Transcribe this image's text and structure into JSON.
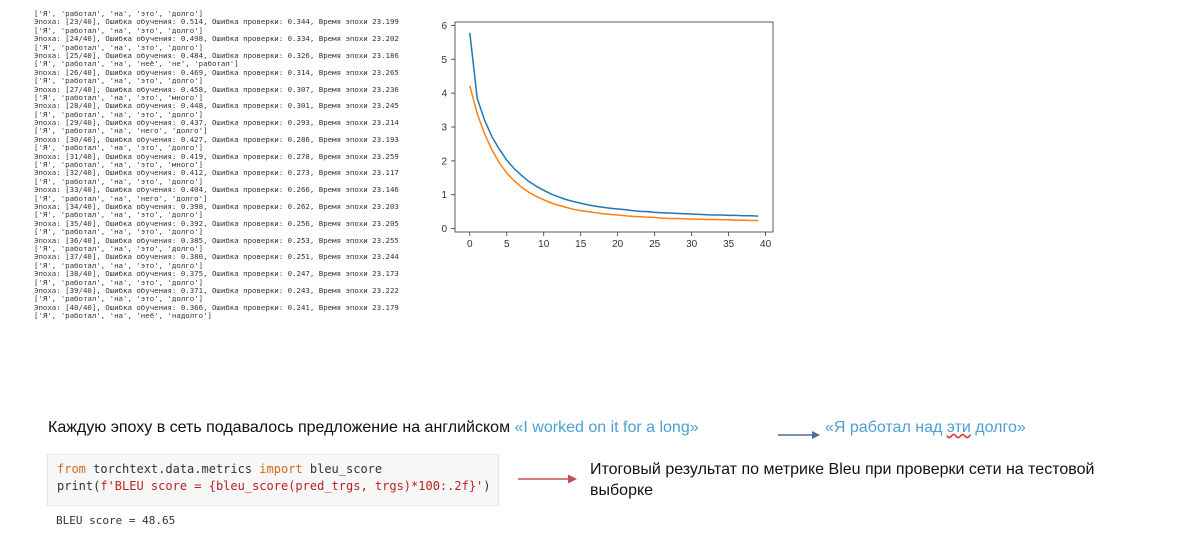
{
  "training_log": [
    "['Я', 'работал', 'на', 'это', 'долго']",
    "Эпоха: [23/40], Ошибка обучения: 0.514, Ошибка проверки: 0.344, Время эпохи 23.199",
    "['Я', 'работал', 'на', 'это', 'долго']",
    "Эпоха: [24/40], Ошибка обучения: 0.498, Ошибка проверки: 0.334, Время эпохи 23.202",
    "['Я', 'работал', 'на', 'это', 'долго']",
    "Эпоха: [25/40], Ошибка обучения: 0.484, Ошибка проверки: 0.326, Время эпохи 23.186",
    "['Я', 'работал', 'на', 'неё', 'не', 'работал']",
    "Эпоха: [26/40], Ошибка обучения: 0.469, Ошибка проверки: 0.314, Время эпохи 23.265",
    "['Я', 'работал', 'на', 'это', 'долго']",
    "Эпоха: [27/40], Ошибка обучения: 0.458, Ошибка проверки: 0.307, Время эпохи 23.236",
    "['Я', 'работал', 'на', 'это', 'много']",
    "Эпоха: [28/40], Ошибка обучения: 0.448, Ошибка проверки: 0.301, Время эпохи 23.245",
    "['Я', 'работал', 'на', 'это', 'долго']",
    "Эпоха: [29/40], Ошибка обучения: 0.437, Ошибка проверки: 0.293, Время эпохи 23.214",
    "['Я', 'работал', 'на', 'него', 'долго']",
    "Эпоха: [30/40], Ошибка обучения: 0.427, Ошибка проверки: 0.286, Время эпохи 23.193",
    "['Я', 'работал', 'на', 'это', 'долго']",
    "Эпоха: [31/40], Ошибка обучения: 0.419, Ошибка проверки: 0.278, Время эпохи 23.259",
    "['Я', 'работал', 'на', 'это', 'много']",
    "Эпоха: [32/40], Ошибка обучения: 0.412, Ошибка проверки: 0.273, Время эпохи 23.117",
    "['Я', 'работал', 'на', 'это', 'долго']",
    "Эпоха: [33/40], Ошибка обучения: 0.404, Ошибка проверки: 0.266, Время эпохи 23.146",
    "['Я', 'работал', 'на', 'него', 'долго']",
    "Эпоха: [34/40], Ошибка обучения: 0.398, Ошибка проверки: 0.262, Время эпохи 23.203",
    "['Я', 'работал', 'на', 'это', 'долго']",
    "Эпоха: [35/40], Ошибка обучения: 0.392, Ошибка проверки: 0.256, Время эпохи 23.205",
    "['Я', 'работал', 'на', 'это', 'долго']",
    "Эпоха: [36/40], Ошибка обучения: 0.385, Ошибка проверки: 0.253, Время эпохи 23.255",
    "['Я', 'работал', 'на', 'это', 'долго']",
    "Эпоха: [37/40], Ошибка обучения: 0.380, Ошибка проверки: 0.251, Время эпохи 23.244",
    "['Я', 'работал', 'на', 'это', 'долго']",
    "Эпоха: [38/40], Ошибка обучения: 0.375, Ошибка проверки: 0.247, Время эпохи 23.173",
    "['Я', 'работал', 'на', 'это', 'долго']",
    "Эпоха: [39/40], Ошибка обучения: 0.371, Ошибка проверки: 0.243, Время эпохи 23.222",
    "['Я', 'работал', 'на', 'это', 'долго']",
    "Эпоха: [40/40], Ошибка обучения: 0.366, Ошибка проверки: 0.241, Время эпохи 23.179",
    "['Я', 'работал', 'на', 'неё', 'надолго']"
  ],
  "chart_data": {
    "type": "line",
    "xlim": [
      -2,
      41
    ],
    "ylim": [
      -0.1,
      6.1
    ],
    "xticks": [
      0,
      5,
      10,
      15,
      20,
      25,
      30,
      35,
      40
    ],
    "yticks": [
      0,
      1,
      2,
      3,
      4,
      5,
      6
    ],
    "grid": false,
    "series": [
      {
        "color": "#1f77b4",
        "x": [
          0,
          1,
          2,
          3,
          4,
          5,
          6,
          7,
          8,
          9,
          10,
          11,
          12,
          13,
          14,
          15,
          16,
          17,
          18,
          19,
          20,
          21,
          22,
          23,
          24,
          25,
          26,
          27,
          28,
          29,
          30,
          31,
          32,
          33,
          34,
          35,
          36,
          37,
          38,
          39
        ],
        "values": [
          5.78,
          3.85,
          3.2,
          2.71,
          2.34,
          2.02,
          1.77,
          1.57,
          1.39,
          1.25,
          1.13,
          1.02,
          0.94,
          0.86,
          0.8,
          0.75,
          0.7,
          0.66,
          0.63,
          0.6,
          0.58,
          0.56,
          0.53,
          0.51,
          0.5,
          0.48,
          0.47,
          0.46,
          0.45,
          0.44,
          0.43,
          0.42,
          0.41,
          0.4,
          0.4,
          0.39,
          0.39,
          0.38,
          0.38,
          0.37
        ]
      },
      {
        "color": "#ff7f0e",
        "x": [
          0,
          1,
          2,
          3,
          4,
          5,
          6,
          7,
          8,
          9,
          10,
          11,
          12,
          13,
          14,
          15,
          16,
          17,
          18,
          19,
          20,
          21,
          22,
          23,
          24,
          25,
          26,
          27,
          28,
          29,
          30,
          31,
          32,
          33,
          34,
          35,
          36,
          37,
          38,
          39
        ],
        "values": [
          4.22,
          3.4,
          2.8,
          2.32,
          1.94,
          1.64,
          1.41,
          1.22,
          1.07,
          0.95,
          0.85,
          0.76,
          0.69,
          0.63,
          0.57,
          0.53,
          0.5,
          0.47,
          0.44,
          0.42,
          0.4,
          0.38,
          0.36,
          0.35,
          0.34,
          0.33,
          0.31,
          0.3,
          0.3,
          0.29,
          0.28,
          0.28,
          0.27,
          0.27,
          0.26,
          0.26,
          0.25,
          0.25,
          0.24,
          0.24
        ]
      }
    ]
  },
  "caption": {
    "text_prefix": "Каждую эпоху в сеть подавалось предложение на английском ",
    "english_sentence": "«I worked on it for a long»",
    "russian_before": "«Я работал над ",
    "russian_wavy": "эти",
    "russian_after": " долго»"
  },
  "code_cell": {
    "line1_kw1": "from",
    "line1_mod": " torchtext.data.metrics ",
    "line1_kw2": "import",
    "line1_name": " bleu_score",
    "line2_a": "print(",
    "line2_str": "f'BLEU score = {bleu_score(pred_trgs, trgs)*100:.2f}'",
    "line2_b": ")",
    "output": "BLEU score = 48.65"
  },
  "result_note": "Итоговый результат по метрике Bleu при проверки сети на тестовой выборке",
  "colors": {
    "train_line": "#1f77b4",
    "val_line": "#ff7f0e",
    "caption_accent": "#4a9fd5",
    "arrow_blue": "#4a6f9d",
    "arrow_red": "#c0504d"
  }
}
